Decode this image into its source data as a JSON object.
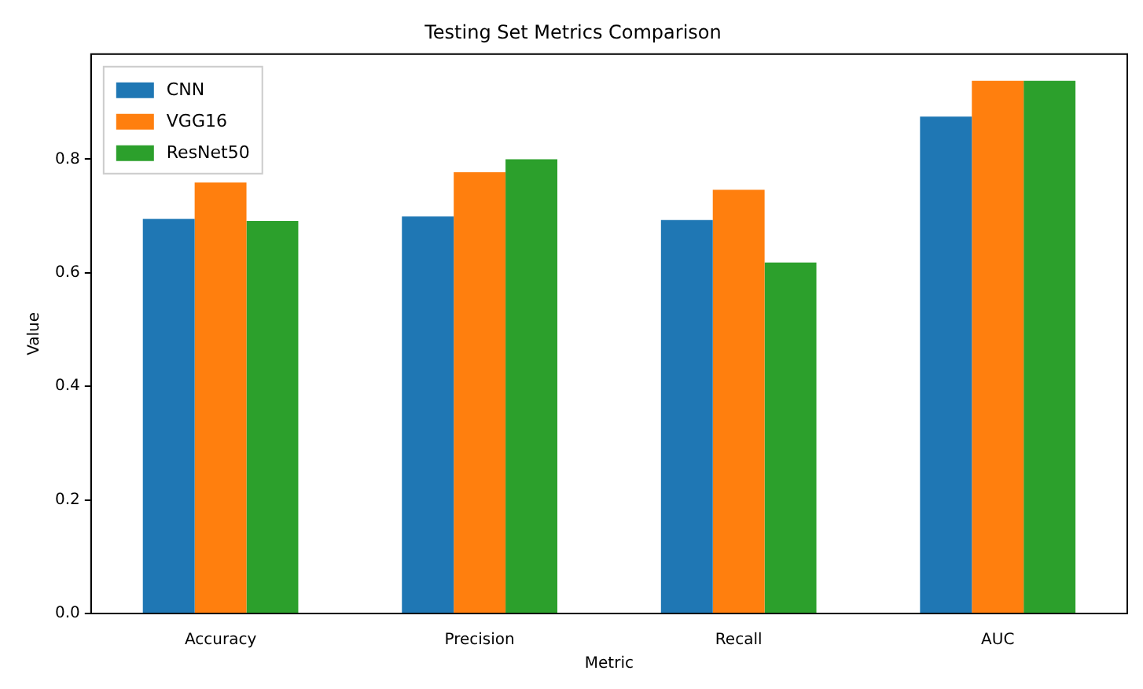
{
  "chart_data": {
    "type": "bar",
    "title": "Testing Set Metrics Comparison",
    "xlabel": "Metric",
    "ylabel": "Value",
    "categories": [
      "Accuracy",
      "Precision",
      "Recall",
      "AUC"
    ],
    "series": [
      {
        "name": "CNN",
        "color": "#1f77b4",
        "values": [
          0.695,
          0.699,
          0.693,
          0.875
        ]
      },
      {
        "name": "VGG16",
        "color": "#ff7f0e",
        "values": [
          0.759,
          0.777,
          0.746,
          0.938
        ]
      },
      {
        "name": "ResNet50",
        "color": "#2ca02c",
        "values": [
          0.691,
          0.8,
          0.618,
          0.938
        ]
      }
    ],
    "ylim": [
      0,
      0.985
    ],
    "yticks": [
      {
        "value": 0,
        "label": "0.0"
      },
      {
        "value": 0.2,
        "label": "0.2"
      },
      {
        "value": 0.4,
        "label": "0.4"
      },
      {
        "value": 0.6,
        "label": "0.6"
      },
      {
        "value": 0.8,
        "label": "0.8"
      }
    ],
    "grid": false,
    "legend": "top left"
  }
}
